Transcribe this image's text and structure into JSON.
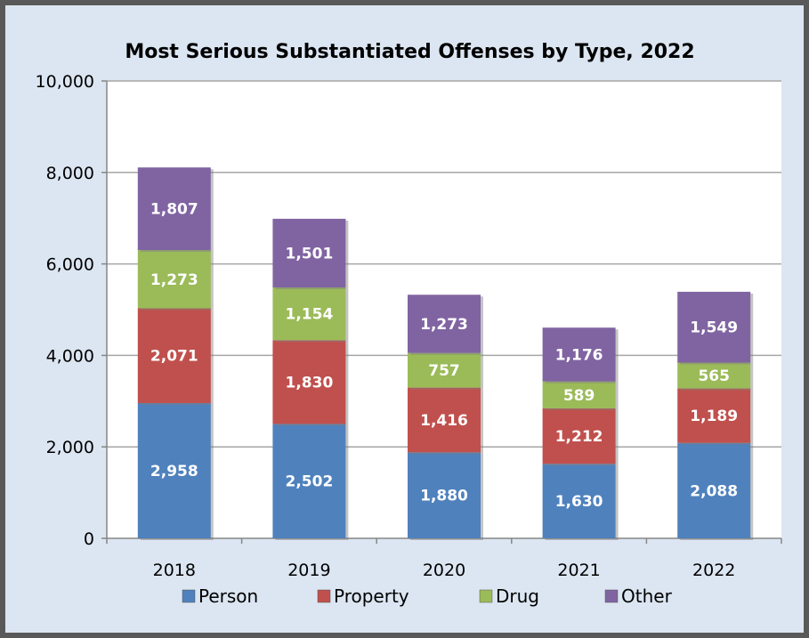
{
  "chart_data": {
    "type": "bar",
    "stacked": true,
    "title": "Most Serious Substantiated Offenses by Type, 2022",
    "xlabel": "",
    "ylabel": "",
    "categories": [
      "2018",
      "2019",
      "2020",
      "2021",
      "2022"
    ],
    "ylim": [
      0,
      10000
    ],
    "yticks": [
      0,
      2000,
      4000,
      6000,
      8000,
      10000
    ],
    "ytick_labels": [
      "0",
      "2,000",
      "4,000",
      "6,000",
      "8,000",
      "10,000"
    ],
    "grid": true,
    "legend_position": "bottom",
    "series": [
      {
        "name": "Person",
        "color": "#4f81bd",
        "values": [
          2958,
          2502,
          1880,
          1630,
          2088
        ],
        "labels": [
          "2,958",
          "2,502",
          "1,880",
          "1,630",
          "2,088"
        ]
      },
      {
        "name": "Property",
        "color": "#c0504d",
        "values": [
          2071,
          1830,
          1416,
          1212,
          1189
        ],
        "labels": [
          "2,071",
          "1,830",
          "1,416",
          "1,212",
          "1,189"
        ]
      },
      {
        "name": "Drug",
        "color": "#9bbb59",
        "values": [
          1273,
          1154,
          757,
          589,
          565
        ],
        "labels": [
          "1,273",
          "1,154",
          "757",
          "589",
          "565"
        ]
      },
      {
        "name": "Other",
        "color": "#8064a2",
        "values": [
          1807,
          1501,
          1273,
          1176,
          1549
        ],
        "labels": [
          "1,807",
          "1,501",
          "1,273",
          "1,176",
          "1,549"
        ]
      }
    ]
  }
}
